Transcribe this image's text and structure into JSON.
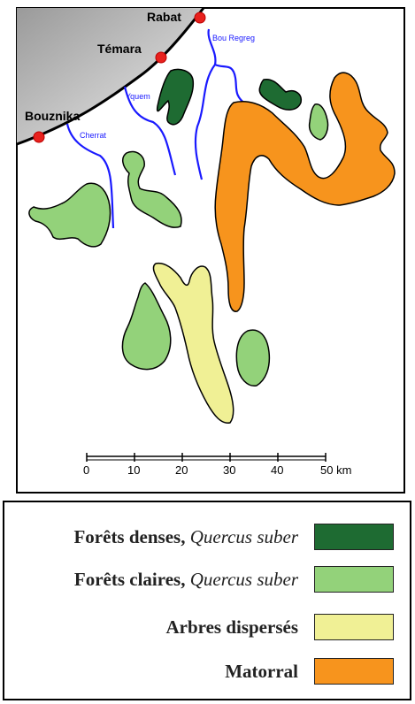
{
  "cities": [
    {
      "name": "Rabat"
    },
    {
      "name": "Témara"
    },
    {
      "name": "Bouznika"
    }
  ],
  "rivers": [
    {
      "name": "Bou Regreg"
    },
    {
      "name": "Yquem"
    },
    {
      "name": "Cherrat"
    }
  ],
  "scale_bar": {
    "ticks": [
      "0",
      "10",
      "20",
      "30",
      "40",
      "50 km"
    ]
  },
  "legend": {
    "items": [
      {
        "label": "Forêts denses, ",
        "species": "Quercus suber",
        "color": "#1e6b32"
      },
      {
        "label": "Forêts claires, ",
        "species": "Quercus suber",
        "color": "#93d27a"
      },
      {
        "label": "Arbres dispersés",
        "species": "",
        "color": "#f0f095"
      },
      {
        "label": "Matorral",
        "species": "",
        "color": "#f7941d"
      }
    ]
  },
  "colors": {
    "sea": "#bdbdbd",
    "river": "#1a1aff",
    "city_marker": "#e8211d",
    "dense_forest": "#1e6b32",
    "open_forest": "#93d27a",
    "scattered_trees": "#f0f095",
    "matorral": "#f7941d"
  }
}
